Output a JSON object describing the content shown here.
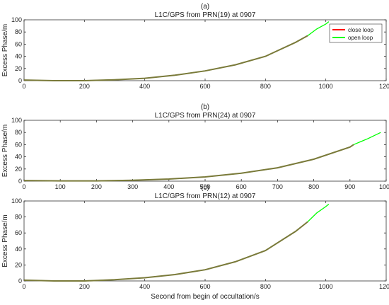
{
  "figure": {
    "colors": {
      "close_loop": "#ff0000",
      "open_loop": "#00ff00",
      "overlap": "#7a7a3a",
      "axis": "#333333"
    },
    "xlabel": "Second from begin of occultation/s"
  },
  "chart_data": [
    {
      "type": "line",
      "panel_label": "(a)",
      "title": "L1C/GPS from PRN(19) at 0907",
      "xlabel": "",
      "ylabel": "Excess Phase/m",
      "xlim": [
        0,
        1200
      ],
      "ylim": [
        0,
        100
      ],
      "xticks": [
        0,
        200,
        400,
        600,
        800,
        1000,
        1200
      ],
      "yticks": [
        0,
        20,
        40,
        60,
        80,
        100
      ],
      "legend": {
        "position": "top-right",
        "entries": [
          "close loop",
          "open loop"
        ]
      },
      "series": [
        {
          "name": "close loop",
          "x": [
            0,
            100,
            200,
            300,
            400,
            500,
            600,
            700,
            800,
            900,
            940
          ],
          "y": [
            1,
            0,
            0,
            1.5,
            4,
            9,
            16,
            26,
            40,
            63,
            74
          ]
        },
        {
          "name": "open loop",
          "x": [
            0,
            100,
            200,
            300,
            400,
            500,
            600,
            700,
            800,
            900,
            940,
            970,
            1000,
            1010
          ],
          "y": [
            1,
            0,
            0,
            1.5,
            4,
            9,
            16,
            26,
            40,
            63,
            74,
            85,
            93,
            97
          ]
        }
      ]
    },
    {
      "type": "line",
      "panel_label": "(b)",
      "title": "L1C/GPS from PRN(24) at 0907",
      "xlabel": "",
      "ylabel": "Excess Phase/m",
      "xlim": [
        0,
        1000
      ],
      "ylim": [
        0,
        100
      ],
      "xticks": [
        0,
        100,
        200,
        300,
        400,
        500,
        600,
        700,
        800,
        900,
        1000
      ],
      "yticks": [
        0,
        20,
        40,
        60,
        80,
        100
      ],
      "legend": null,
      "series": [
        {
          "name": "close loop",
          "x": [
            0,
            100,
            200,
            300,
            400,
            500,
            600,
            700,
            800,
            900,
            910
          ],
          "y": [
            1,
            0.5,
            0.5,
            1.5,
            3.5,
            7,
            13,
            22,
            36,
            56,
            60
          ]
        },
        {
          "name": "open loop",
          "x": [
            0,
            100,
            200,
            300,
            400,
            500,
            600,
            700,
            800,
            900,
            910,
            950,
            985
          ],
          "y": [
            1,
            0.5,
            0.5,
            1.5,
            3.5,
            7,
            13,
            22,
            36,
            56,
            60,
            70,
            80
          ]
        }
      ]
    },
    {
      "type": "line",
      "panel_label": "(c)",
      "title": "L1C/GPS from PRN(12) at 0907",
      "xlabel": "Second from begin of occultation/s",
      "ylabel": "Excess Phase/m",
      "xlim": [
        0,
        1200
      ],
      "ylim": [
        0,
        100
      ],
      "xticks": [
        0,
        200,
        400,
        600,
        800,
        1000,
        1200
      ],
      "yticks": [
        0,
        20,
        40,
        60,
        80,
        100
      ],
      "legend": null,
      "series": [
        {
          "name": "close loop",
          "x": [
            0,
            100,
            200,
            300,
            400,
            500,
            600,
            700,
            800,
            900,
            940
          ],
          "y": [
            1,
            0,
            0,
            1.5,
            4,
            8,
            14,
            24,
            38,
            62,
            74
          ]
        },
        {
          "name": "open loop",
          "x": [
            0,
            100,
            200,
            300,
            400,
            500,
            600,
            700,
            800,
            900,
            940,
            970,
            1000,
            1010
          ],
          "y": [
            1,
            0,
            0,
            1.5,
            4,
            8,
            14,
            24,
            38,
            62,
            74,
            85,
            93,
            96
          ]
        }
      ]
    }
  ]
}
